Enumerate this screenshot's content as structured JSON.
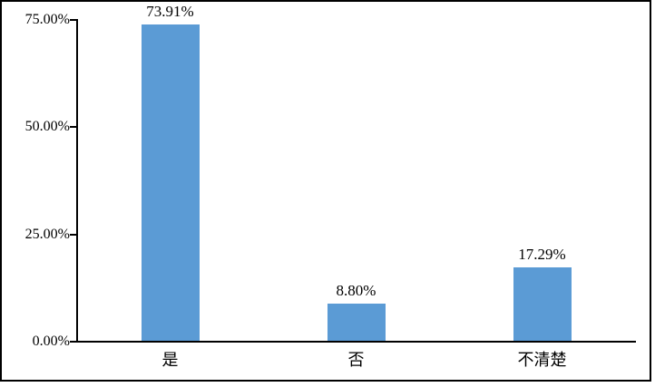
{
  "chart_data": {
    "type": "bar",
    "categories": [
      "是",
      "否",
      "不清楚"
    ],
    "values": [
      73.91,
      8.8,
      17.29
    ],
    "value_labels": [
      "73.91%",
      "8.80%",
      "17.29%"
    ],
    "y_ticks": [
      "75.00%",
      "50.00%",
      "25.00%",
      "0.00%"
    ],
    "y_tick_values": [
      75,
      50,
      25,
      0
    ],
    "ylim": [
      0,
      75
    ],
    "title": "",
    "xlabel": "",
    "ylabel": "",
    "grid": false,
    "legend": "none",
    "bar_color": "#5B9BD5",
    "axis_color": "#000000",
    "border_color": "#000000",
    "background_color": "#FFFFFF"
  }
}
